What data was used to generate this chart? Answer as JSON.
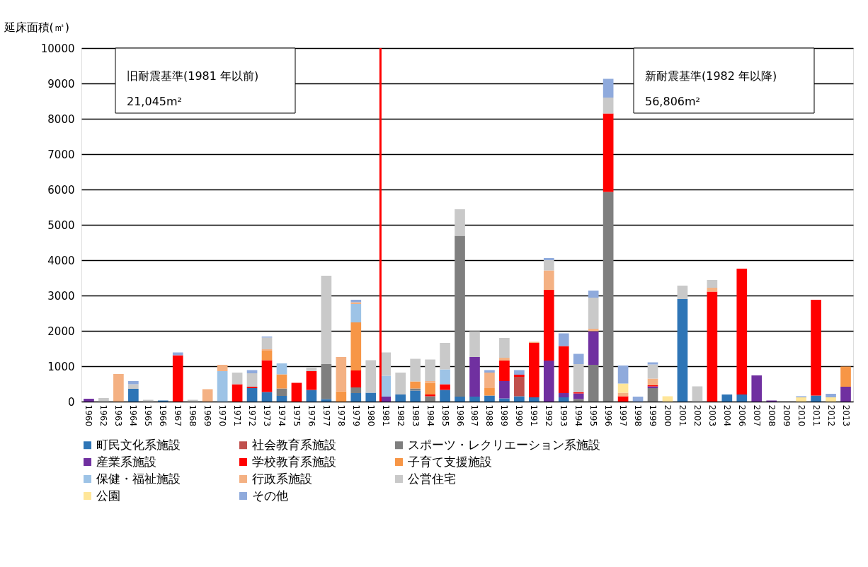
{
  "chart_data": {
    "type": "bar",
    "stacked": true,
    "ylabel": "延床面積(㎡)",
    "categories": [
      "1960",
      "1962",
      "1963",
      "1964",
      "1965",
      "1966",
      "1967",
      "1968",
      "1969",
      "1970",
      "1971",
      "1972",
      "1973",
      "1974",
      "1975",
      "1976",
      "1977",
      "1978",
      "1979",
      "1980",
      "1981",
      "1982",
      "1983",
      "1984",
      "1985",
      "1986",
      "1987",
      "1988",
      "1989",
      "1990",
      "1991",
      "1992",
      "1993",
      "1994",
      "1995",
      "1996",
      "1997",
      "1998",
      "1999",
      "2000",
      "2001",
      "2002",
      "2003",
      "2004",
      "2006",
      "2007",
      "2008",
      "2009",
      "2010",
      "2011",
      "2012",
      "2013"
    ],
    "ylim": [
      0,
      10000
    ],
    "yticks": [
      0,
      1000,
      2000,
      3000,
      4000,
      5000,
      6000,
      7000,
      8000,
      9000,
      10000
    ],
    "grid": "y",
    "legend": "bottom",
    "series": [
      {
        "name": "町民文化系施設",
        "color": "#2e75b6",
        "values": [
          null,
          null,
          null,
          360,
          null,
          30,
          null,
          null,
          null,
          null,
          null,
          380,
          270,
          160,
          null,
          330,
          70,
          null,
          240,
          250,
          null,
          200,
          310,
          null,
          330,
          140,
          140,
          170,
          90,
          150,
          120,
          null,
          120,
          null,
          null,
          null,
          null,
          null,
          null,
          null,
          2900,
          null,
          null,
          200,
          200,
          null,
          null,
          null,
          null,
          170,
          null,
          null
        ]
      },
      {
        "name": "社会教育系施設",
        "color": "#c0504d",
        "values": [
          null,
          null,
          null,
          null,
          null,
          null,
          null,
          null,
          null,
          null,
          null,
          null,
          null,
          null,
          null,
          null,
          null,
          null,
          null,
          null,
          null,
          null,
          null,
          null,
          null,
          null,
          null,
          null,
          null,
          550,
          null,
          null,
          null,
          null,
          null,
          null,
          null,
          null,
          null,
          null,
          null,
          null,
          null,
          null,
          null,
          null,
          null,
          null,
          null,
          null,
          null,
          null
        ]
      },
      {
        "name": "スポーツ・レクリエーション系施設",
        "color": "#7f7f7f",
        "values": [
          null,
          null,
          null,
          null,
          null,
          null,
          null,
          null,
          null,
          null,
          null,
          null,
          null,
          210,
          null,
          null,
          990,
          null,
          160,
          null,
          null,
          null,
          60,
          150,
          null,
          4550,
          null,
          null,
          null,
          null,
          null,
          null,
          null,
          70,
          1040,
          5930,
          null,
          null,
          380,
          null,
          null,
          null,
          null,
          null,
          null,
          null,
          null,
          null,
          null,
          null,
          null,
          null
        ]
      },
      {
        "name": "産業系施設",
        "color": "#7030a0",
        "values": [
          80,
          null,
          null,
          null,
          null,
          null,
          null,
          null,
          null,
          null,
          null,
          null,
          null,
          null,
          null,
          null,
          null,
          null,
          null,
          null,
          140,
          null,
          null,
          null,
          null,
          null,
          1120,
          null,
          490,
          null,
          null,
          1160,
          120,
          160,
          950,
          null,
          null,
          null,
          50,
          null,
          null,
          null,
          null,
          null,
          null,
          740,
          30,
          null,
          null,
          null,
          null,
          420
        ]
      },
      {
        "name": "学校教育系施設",
        "color": "#ff0000",
        "values": [
          null,
          null,
          null,
          null,
          null,
          null,
          1310,
          null,
          null,
          null,
          490,
          40,
          900,
          null,
          530,
          530,
          null,
          null,
          480,
          null,
          null,
          null,
          null,
          50,
          160,
          null,
          null,
          null,
          580,
          60,
          1540,
          2000,
          1330,
          30,
          null,
          2220,
          150,
          null,
          30,
          null,
          null,
          null,
          3110,
          null,
          3560,
          null,
          null,
          null,
          null,
          2710,
          null,
          null
        ]
      },
      {
        "name": "子育て支援施設",
        "color": "#f79646",
        "values": [
          null,
          null,
          null,
          null,
          null,
          null,
          null,
          null,
          null,
          null,
          null,
          null,
          270,
          400,
          null,
          null,
          null,
          290,
          1360,
          null,
          null,
          null,
          200,
          330,
          null,
          null,
          null,
          210,
          null,
          null,
          null,
          null,
          null,
          null,
          null,
          null,
          null,
          null,
          null,
          null,
          null,
          null,
          null,
          null,
          null,
          null,
          null,
          null,
          null,
          null,
          null,
          570
        ]
      },
      {
        "name": "保健・福祉施設",
        "color": "#9dc3e6",
        "values": [
          null,
          null,
          null,
          null,
          null,
          null,
          null,
          null,
          null,
          860,
          null,
          null,
          null,
          310,
          null,
          null,
          null,
          null,
          520,
          null,
          590,
          null,
          null,
          null,
          420,
          null,
          null,
          null,
          null,
          null,
          null,
          null,
          null,
          null,
          null,
          null,
          null,
          null,
          null,
          null,
          null,
          null,
          null,
          null,
          null,
          null,
          null,
          null,
          null,
          null,
          null,
          null
        ]
      },
      {
        "name": "行政系施設",
        "color": "#f4b183",
        "values": [
          null,
          null,
          780,
          null,
          null,
          null,
          null,
          null,
          350,
          180,
          null,
          null,
          40,
          null,
          null,
          null,
          null,
          970,
          50,
          null,
          null,
          null,
          null,
          50,
          null,
          null,
          null,
          440,
          80,
          null,
          30,
          550,
          null,
          null,
          70,
          null,
          100,
          null,
          190,
          null,
          null,
          null,
          110,
          null,
          null,
          null,
          null,
          null,
          null,
          null,
          null,
          null
        ]
      },
      {
        "name": "公営住宅",
        "color": "#c9c9c9",
        "values": [
          null,
          100,
          null,
          130,
          50,
          null,
          null,
          50,
          null,
          null,
          330,
          380,
          330,
          null,
          null,
          110,
          2500,
          null,
          null,
          920,
          660,
          620,
          640,
          610,
          750,
          750,
          730,
          null,
          560,
          null,
          null,
          290,
          null,
          800,
          880,
          450,
          null,
          null,
          400,
          null,
          380,
          430,
          220,
          null,
          null,
          null,
          null,
          null,
          null,
          null,
          null,
          null
        ]
      },
      {
        "name": "公園",
        "color": "#ffe699",
        "values": [
          null,
          null,
          null,
          null,
          null,
          null,
          null,
          null,
          null,
          null,
          null,
          null,
          null,
          null,
          null,
          null,
          null,
          null,
          null,
          null,
          null,
          null,
          null,
          null,
          null,
          null,
          null,
          null,
          null,
          null,
          null,
          null,
          null,
          null,
          null,
          null,
          260,
          null,
          null,
          150,
          null,
          null,
          null,
          null,
          null,
          null,
          null,
          null,
          120,
          null,
          120,
          null
        ]
      },
      {
        "name": "その他",
        "color": "#8faadc",
        "values": [
          null,
          null,
          null,
          90,
          null,
          null,
          80,
          null,
          null,
          null,
          null,
          90,
          30,
          null,
          null,
          null,
          null,
          null,
          70,
          null,
          null,
          null,
          null,
          null,
          null,
          null,
          null,
          70,
          null,
          130,
          null,
          60,
          360,
          290,
          200,
          530,
          510,
          140,
          60,
          null,
          null,
          null,
          null,
          null,
          null,
          null,
          null,
          null,
          30,
          null,
          100,
          null
        ]
      }
    ],
    "ref_lines": [
      {
        "axis": "x",
        "value": "1981",
        "label": null,
        "color": "#ff0000"
      }
    ],
    "annotations": [
      "旧耐震基準(1981 年以前)",
      "21,045m²",
      "新耐震基準(1982 年以降)",
      "56,806m²"
    ]
  }
}
